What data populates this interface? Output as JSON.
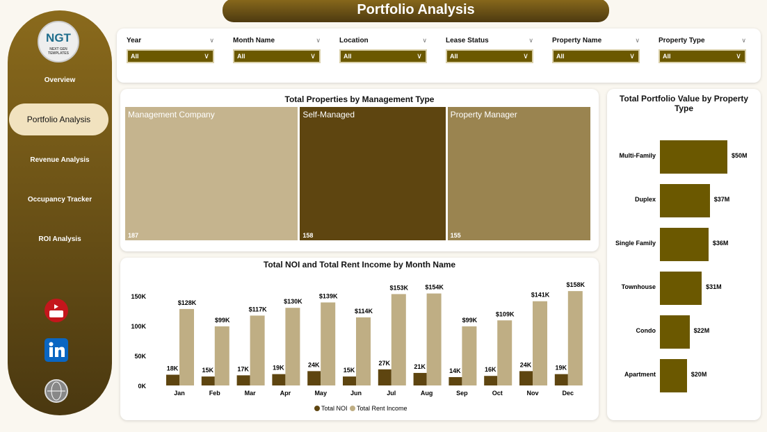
{
  "title": "Portfolio Analysis",
  "sidebar": {
    "logo": "NGT",
    "logo_sub": "NEXT GEN TEMPLATES",
    "items": [
      {
        "label": "Overview"
      },
      {
        "label": "Portfolio Analysis",
        "active": true
      },
      {
        "label": "Revenue Analysis"
      },
      {
        "label": "Occupancy Tracker"
      },
      {
        "label": "ROI Analysis"
      }
    ],
    "social": [
      "youtube-icon",
      "linkedin-icon",
      "globe-icon"
    ]
  },
  "filters": [
    {
      "label": "Year",
      "value": "All"
    },
    {
      "label": "Month Name",
      "value": "All"
    },
    {
      "label": "Location",
      "value": "All"
    },
    {
      "label": "Lease Status",
      "value": "All"
    },
    {
      "label": "Property Name",
      "value": "All"
    },
    {
      "label": "Property Type",
      "value": "All"
    }
  ],
  "colors": {
    "accent": "#6b5800",
    "noi": "#5e4510",
    "rent": "#bfae84"
  },
  "chart_data": [
    {
      "type": "treemap",
      "title": "Total Properties by Management Type",
      "categories": [
        "Management Company",
        "Self-Managed",
        "Property Manager"
      ],
      "values": [
        187,
        158,
        155
      ],
      "value_labels": [
        "187",
        "158",
        "155"
      ],
      "colors": [
        "#c5b48e",
        "#5e4510",
        "#9a8450"
      ]
    },
    {
      "type": "bar",
      "title": "Total NOI and Total Rent Income by Month Name",
      "categories": [
        "Jan",
        "Feb",
        "Mar",
        "Apr",
        "May",
        "Jun",
        "Jul",
        "Aug",
        "Sep",
        "Oct",
        "Nov",
        "Dec"
      ],
      "ylim": [
        0,
        150000
      ],
      "yticks": [
        "0K",
        "50K",
        "100K",
        "150K"
      ],
      "series": [
        {
          "name": "Total NOI",
          "values": [
            18000,
            15000,
            17000,
            19000,
            24000,
            15000,
            27000,
            21000,
            14000,
            16000,
            24000,
            19000
          ],
          "labels": [
            "18K",
            "15K",
            "17K",
            "19K",
            "24K",
            "15K",
            "27K",
            "21K",
            "14K",
            "16K",
            "24K",
            "19K"
          ]
        },
        {
          "name": "Total Rent Income",
          "values": [
            128000,
            99000,
            117000,
            130000,
            139000,
            114000,
            153000,
            154000,
            99000,
            109000,
            141000,
            158000
          ],
          "labels": [
            "$128K",
            "$99K",
            "$117K",
            "$130K",
            "$139K",
            "$114K",
            "$153K",
            "$154K",
            "$99K",
            "$109K",
            "$141K",
            "$158K"
          ]
        }
      ],
      "legend": "bottom"
    },
    {
      "type": "bar",
      "orientation": "horizontal",
      "title": "Total Portfolio Value by Property Type",
      "categories": [
        "Multi-Family",
        "Duplex",
        "Single Family",
        "Townhouse",
        "Condo",
        "Apartment"
      ],
      "values": [
        50,
        37,
        36,
        31,
        22,
        20
      ],
      "unit": "M",
      "labels": [
        "$50M",
        "$37M",
        "$36M",
        "$31M",
        "$22M",
        "$20M"
      ]
    }
  ]
}
